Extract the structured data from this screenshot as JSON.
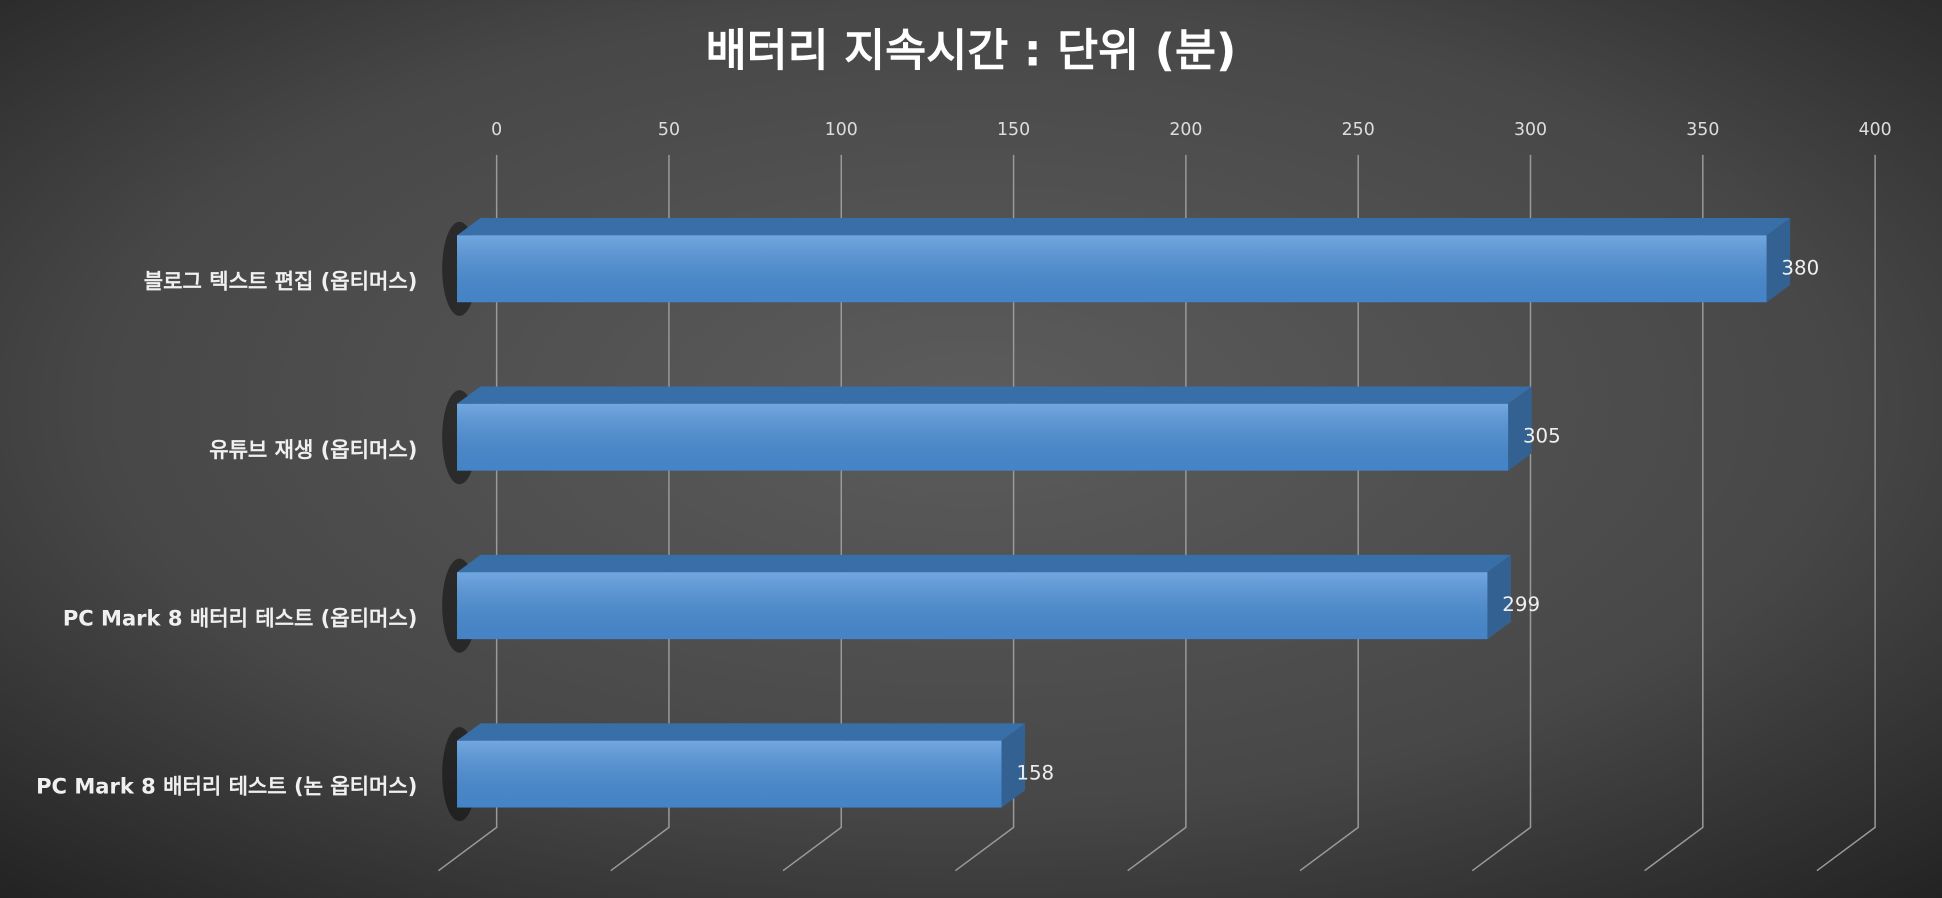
{
  "chart_data": {
    "type": "bar",
    "orientation": "horizontal",
    "title": "배터리 지속시간 : 단위 (분)",
    "categories": [
      "블로그 텍스트 편집 (옵티머스)",
      "유튜브 재생 (옵티머스)",
      "PC Mark 8 배터리 테스트 (옵티머스)",
      "PC Mark 8 배터리 테스트 (논 옵티머스)"
    ],
    "values": [
      380,
      305,
      299,
      158
    ],
    "color": "#4a8fd8",
    "xlim": [
      0,
      400
    ],
    "xticks": [
      0,
      50,
      100,
      150,
      200,
      250,
      300,
      350,
      400
    ],
    "grid": true
  }
}
